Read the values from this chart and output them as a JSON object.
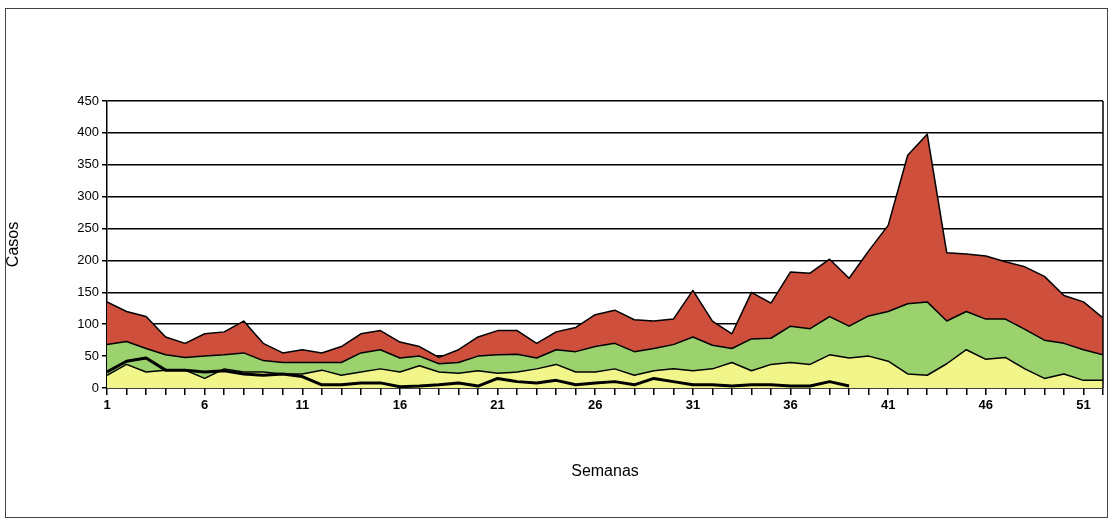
{
  "chart_data": {
    "type": "area",
    "stacked": true,
    "xlabel": "Semanas",
    "ylabel": "Casos",
    "x": [
      1,
      2,
      3,
      4,
      5,
      6,
      7,
      8,
      9,
      10,
      11,
      12,
      13,
      14,
      15,
      16,
      17,
      18,
      19,
      20,
      21,
      22,
      23,
      24,
      25,
      26,
      27,
      28,
      29,
      30,
      31,
      32,
      33,
      34,
      35,
      36,
      37,
      38,
      39,
      40,
      41,
      42,
      43,
      44,
      45,
      46,
      47,
      48,
      49,
      50,
      51,
      52
    ],
    "xlim": [
      1,
      52
    ],
    "xticks": [
      1,
      {
        "value": 2,
        "label": null
      },
      {
        "value": 3,
        "label": null
      },
      {
        "value": 4,
        "label": null
      },
      {
        "value": 5,
        "label": null
      },
      6,
      {
        "value": 7,
        "label": null
      },
      {
        "value": 8,
        "label": null
      },
      {
        "value": 9,
        "label": null
      },
      {
        "value": 10,
        "label": null
      },
      11,
      {
        "value": 12,
        "label": null
      },
      {
        "value": 13,
        "label": null
      },
      {
        "value": 14,
        "label": null
      },
      {
        "value": 15,
        "label": null
      },
      16,
      {
        "value": 17,
        "label": null
      },
      {
        "value": 18,
        "label": null
      },
      {
        "value": 19,
        "label": null
      },
      {
        "value": 20,
        "label": null
      },
      21,
      {
        "value": 22,
        "label": null
      },
      {
        "value": 23,
        "label": null
      },
      {
        "value": 24,
        "label": null
      },
      {
        "value": 25,
        "label": null
      },
      26,
      {
        "value": 27,
        "label": null
      },
      {
        "value": 28,
        "label": null
      },
      {
        "value": 29,
        "label": null
      },
      {
        "value": 30,
        "label": null
      },
      31,
      {
        "value": 32,
        "label": null
      },
      {
        "value": 33,
        "label": null
      },
      {
        "value": 34,
        "label": null
      },
      {
        "value": 35,
        "label": null
      },
      36,
      {
        "value": 37,
        "label": null
      },
      {
        "value": 38,
        "label": null
      },
      {
        "value": 39,
        "label": null
      },
      {
        "value": 40,
        "label": null
      },
      41,
      {
        "value": 42,
        "label": null
      },
      {
        "value": 43,
        "label": null
      },
      {
        "value": 44,
        "label": null
      },
      {
        "value": 45,
        "label": null
      },
      46,
      {
        "value": 47,
        "label": null
      },
      {
        "value": 48,
        "label": null
      },
      {
        "value": 49,
        "label": null
      },
      {
        "value": 50,
        "label": null
      },
      51,
      {
        "value": 52,
        "label": null
      }
    ],
    "ylim": [
      0,
      450
    ],
    "yticks": [
      0,
      50,
      100,
      150,
      200,
      250,
      300,
      350,
      400,
      450
    ],
    "grid": "y",
    "legend": false,
    "marker": "none",
    "series": [
      {
        "color": "#f2f68a",
        "values": [
          20,
          37,
          25,
          28,
          28,
          15,
          30,
          25,
          25,
          22,
          22,
          28,
          20,
          25,
          30,
          25,
          35,
          25,
          23,
          27,
          23,
          25,
          30,
          37,
          25,
          25,
          30,
          20,
          27,
          30,
          27,
          30,
          40,
          27,
          37,
          40,
          37,
          52,
          47,
          50,
          42,
          22,
          20,
          38,
          60,
          45,
          48,
          30,
          15,
          22,
          12,
          12
        ]
      },
      {
        "color": "#9bd26e",
        "values": [
          48,
          36,
          37,
          24,
          20,
          35,
          22,
          30,
          18,
          18,
          18,
          12,
          20,
          30,
          30,
          22,
          15,
          13,
          17,
          23,
          29,
          28,
          17,
          23,
          32,
          40,
          40,
          37,
          35,
          38,
          53,
          37,
          22,
          50,
          41,
          57,
          56,
          60,
          50,
          63,
          78,
          110,
          115,
          67,
          60,
          63,
          60,
          62,
          60,
          48,
          48,
          40
        ]
      },
      {
        "color": "#cd4f3c",
        "values": [
          67,
          47,
          50,
          28,
          22,
          35,
          36,
          50,
          27,
          15,
          20,
          15,
          25,
          30,
          30,
          25,
          15,
          10,
          20,
          30,
          38,
          37,
          23,
          28,
          38,
          50,
          52,
          50,
          43,
          40,
          73,
          38,
          23,
          73,
          55,
          85,
          87,
          90,
          75,
          102,
          135,
          233,
          263,
          107,
          90,
          99,
          90,
          98,
          100,
          75,
          75,
          58
        ]
      },
      {
        "type": "line",
        "color": "#000000",
        "x": [
          1,
          2,
          3,
          4,
          5,
          6,
          7,
          8,
          9,
          10,
          11,
          12,
          13,
          14,
          15,
          16,
          17,
          18,
          19,
          20,
          21,
          22,
          23,
          24,
          25,
          26,
          27,
          28,
          29,
          30,
          31,
          32,
          33,
          34,
          35,
          36,
          37,
          38,
          39
        ],
        "values": [
          25,
          42,
          47,
          28,
          28,
          25,
          27,
          22,
          20,
          22,
          18,
          5,
          5,
          8,
          8,
          2,
          3,
          5,
          8,
          3,
          15,
          10,
          8,
          12,
          5,
          8,
          10,
          5,
          15,
          10,
          5,
          5,
          3,
          5,
          5,
          3,
          3,
          10,
          3
        ]
      }
    ]
  }
}
